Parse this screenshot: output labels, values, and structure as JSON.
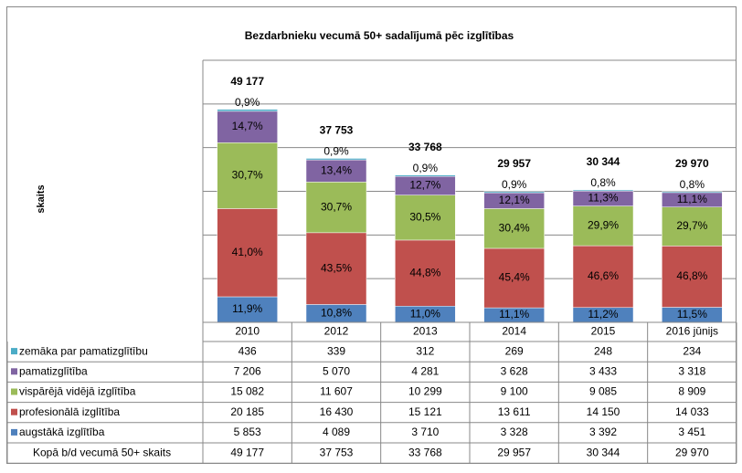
{
  "chart_data": {
    "type": "stacked_bar",
    "title": "Bezdarbnieku vecumā 50+ sadalījumā pēc izglītības",
    "y_label": "skaits",
    "categories": [
      "2010",
      "2012",
      "2013",
      "2014",
      "2015",
      "2016 jūnijs"
    ],
    "ylim": [
      0,
      60000
    ],
    "yticks": [
      0,
      10000,
      20000,
      30000,
      40000,
      50000,
      60000
    ],
    "grid": true,
    "series": [
      {
        "name": "augstākā izglītība",
        "color": "#4f81bd",
        "values": [
          5853,
          4089,
          3710,
          3328,
          3392,
          3451
        ],
        "value_labels": [
          "5 853",
          "4 089",
          "3 710",
          "3 328",
          "3 392",
          "3 451"
        ],
        "share_labels": [
          "11,9%",
          "10,8%",
          "11,0%",
          "11,1%",
          "11,2%",
          "11,5%"
        ]
      },
      {
        "name": "profesionālā izglītība",
        "color": "#c0504d",
        "values": [
          20185,
          16430,
          15121,
          13611,
          14150,
          14033
        ],
        "value_labels": [
          "20 185",
          "16 430",
          "15 121",
          "13 611",
          "14 150",
          "14 033"
        ],
        "share_labels": [
          "41,0%",
          "43,5%",
          "44,8%",
          "45,4%",
          "46,6%",
          "46,8%"
        ]
      },
      {
        "name": "vispārējā vidējā izglītība",
        "color": "#9bbb59",
        "values": [
          15082,
          11607,
          10299,
          9100,
          9085,
          8909
        ],
        "value_labels": [
          "15 082",
          "11 607",
          "10 299",
          "9 100",
          "9 085",
          "8 909"
        ],
        "share_labels": [
          "30,7%",
          "30,7%",
          "30,5%",
          "30,4%",
          "29,9%",
          "29,7%"
        ]
      },
      {
        "name": "pamatizglītība",
        "color": "#8064a2",
        "values": [
          7206,
          5070,
          4281,
          3628,
          3433,
          3318
        ],
        "value_labels": [
          "7 206",
          "5 070",
          "4 281",
          "3 628",
          "3 433",
          "3 318"
        ],
        "share_labels": [
          "14,7%",
          "13,4%",
          "12,7%",
          "12,1%",
          "11,3%",
          "11,1%"
        ]
      },
      {
        "name": "zemāka par pamatizglītību",
        "color": "#4bacc6",
        "values": [
          436,
          339,
          312,
          269,
          248,
          234
        ],
        "value_labels": [
          "436",
          "339",
          "312",
          "269",
          "248",
          "234"
        ],
        "share_labels": [
          "0,9%",
          "0,9%",
          "0,9%",
          "0,9%",
          "0,8%",
          "0,8%"
        ]
      }
    ],
    "total_name": "Kopā b/d vecumā 50+ skaits",
    "totals": [
      49177,
      37753,
      33768,
      29957,
      30344,
      29970
    ],
    "total_labels": [
      "49 177",
      "37 753",
      "33 768",
      "29 957",
      "30 344",
      "29 970"
    ]
  }
}
